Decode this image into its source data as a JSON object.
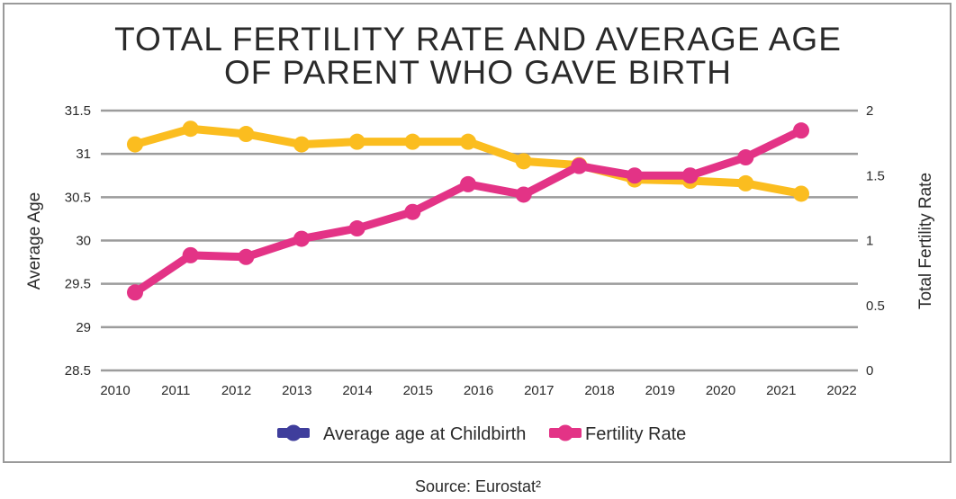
{
  "chart_data": {
    "type": "line",
    "title_lines": [
      "TOTAL FERTILITY RATE AND AVERAGE AGE",
      "OF PARENT WHO GAVE BIRTH"
    ],
    "ylabel": "Average Age",
    "y2label": "Total Fertility Rate",
    "ylim": [
      28.5,
      31.5
    ],
    "y2lim": [
      0,
      2
    ],
    "yticks": [
      "28.5",
      "29",
      "29.5",
      "30",
      "30.5",
      "31",
      "31.5"
    ],
    "y2ticks": [
      "0",
      "0.5",
      "1",
      "1.5",
      "2"
    ],
    "x": [
      "2010",
      "2011",
      "2012",
      "2013",
      "2014",
      "2015",
      "2016",
      "2017",
      "2018",
      "2019",
      "2020",
      "2021",
      "2022"
    ],
    "grid": true,
    "series": [
      {
        "name": "Average age (pink line, left axis)",
        "axis": "left",
        "color": "#e33386",
        "values": [
          29.4,
          29.83,
          29.81,
          30.02,
          30.14,
          30.33,
          30.65,
          30.53,
          30.86,
          30.75,
          30.75,
          30.96,
          31.27
        ]
      },
      {
        "name": "Fertility rate (yellow line, right axis)",
        "axis": "right",
        "color": "#fbbd1f",
        "values": [
          1.74,
          1.86,
          1.82,
          1.74,
          1.76,
          1.76,
          1.76,
          1.61,
          1.58,
          1.47,
          1.46,
          1.44,
          1.36
        ]
      }
    ],
    "legend": {
      "placement": "bottom",
      "entries": [
        {
          "label": "Average age at Childbirth",
          "color": "#3f3e9c"
        },
        {
          "label": "Fertility Rate",
          "color": "#e33386"
        }
      ]
    },
    "source": "Source: Eurostat²"
  }
}
